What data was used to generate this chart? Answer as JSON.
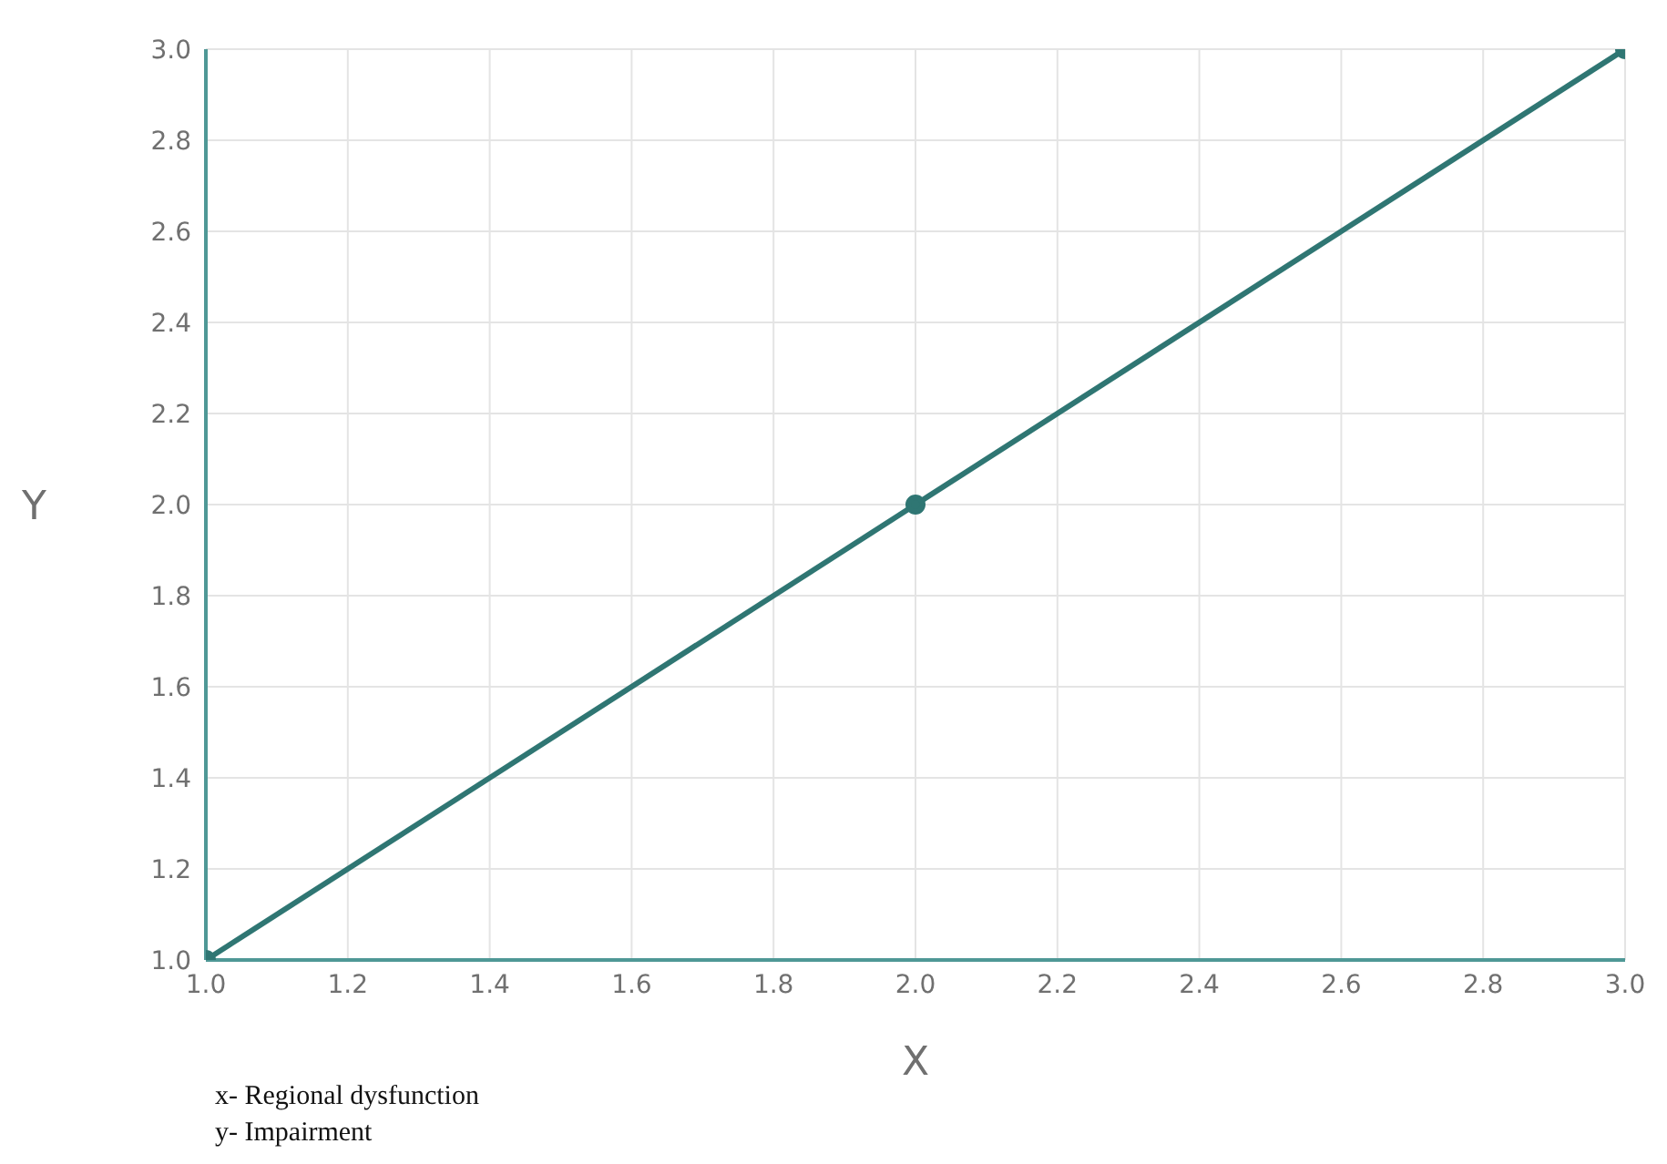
{
  "chart_data": {
    "type": "line",
    "xlabel": "X",
    "ylabel": "Y",
    "x": [
      1.0,
      2.0,
      3.0
    ],
    "series": [
      {
        "color": "#2f7673",
        "values": [
          1.0,
          2.0,
          3.0
        ]
      }
    ],
    "xlim": [
      1.0,
      3.0
    ],
    "ylim": [
      1.0,
      3.0
    ],
    "xticks": [
      {
        "value": 1.0,
        "label": "1.0"
      },
      {
        "value": 1.2,
        "label": "1.2"
      },
      {
        "value": 1.4,
        "label": "1.4"
      },
      {
        "value": 1.6,
        "label": "1.6"
      },
      {
        "value": 1.8,
        "label": "1.8"
      },
      {
        "value": 2.0,
        "label": "2.0"
      },
      {
        "value": 2.2,
        "label": "2.2"
      },
      {
        "value": 2.4,
        "label": "2.4"
      },
      {
        "value": 2.6,
        "label": "2.6"
      },
      {
        "value": 2.8,
        "label": "2.8"
      },
      {
        "value": 3.0,
        "label": "3.0"
      }
    ],
    "yticks": [
      {
        "value": 1.0,
        "label": "1.0"
      },
      {
        "value": 1.2,
        "label": "1.2"
      },
      {
        "value": 1.4,
        "label": "1.4"
      },
      {
        "value": 1.6,
        "label": "1.6"
      },
      {
        "value": 1.8,
        "label": "1.8"
      },
      {
        "value": 2.0,
        "label": "2.0"
      },
      {
        "value": 2.2,
        "label": "2.2"
      },
      {
        "value": 2.4,
        "label": "2.4"
      },
      {
        "value": 2.6,
        "label": "2.6"
      },
      {
        "value": 2.8,
        "label": "2.8"
      },
      {
        "value": 3.0,
        "label": "3.0"
      }
    ],
    "grid": true,
    "marker": "circle",
    "line_style": "solid",
    "annotations": [
      "x- Regional dysfunction",
      "y- Impairment"
    ]
  }
}
